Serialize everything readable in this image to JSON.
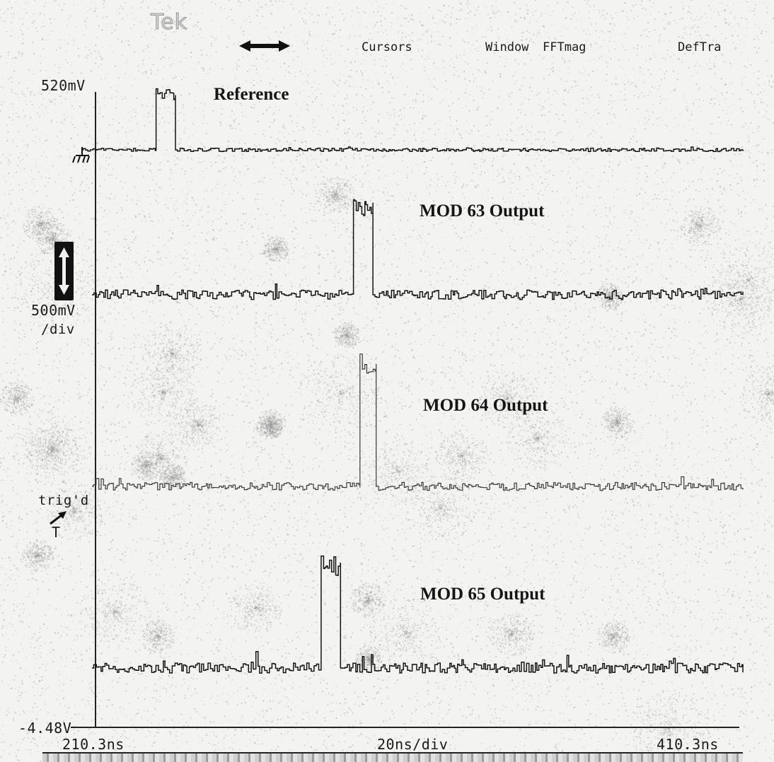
{
  "header": {
    "brand": "Tek",
    "menu": [
      {
        "id": "cursors",
        "label": "Cursors"
      },
      {
        "id": "window",
        "label": "Window"
      },
      {
        "id": "fftmag",
        "label": "FFTmag"
      },
      {
        "id": "deftra",
        "label": "DefTra"
      }
    ]
  },
  "left_readouts": {
    "top_voltage": "520mV",
    "scale_value": "500mV",
    "scale_unit": "/div",
    "trigger_status": "trig'd",
    "trigger_marker": "T",
    "bottom_voltage": "-4.48V"
  },
  "time_axis": {
    "start": "210.3ns",
    "per_div": "20ns/div",
    "end": "410.3ns"
  },
  "icons": {
    "horizontal_arrow": "double-arrow-horizontal-icon",
    "vertical_arrow": "double-arrow-vertical-icon",
    "ground": "ground-symbol-icon",
    "trigger_arrow": "trigger-arrow-icon"
  },
  "colors": {
    "trace": "#141414",
    "trace_faint": "#3a3a3a",
    "background": "#f3f3f1"
  },
  "chart_data": {
    "type": "line",
    "x_start_ns": 210.3,
    "x_end_ns": 410.3,
    "x_per_div_ns": 20,
    "grid": false,
    "series": [
      {
        "name": "Reference",
        "pulse_start_ns": 229,
        "pulse_end_ns": 235,
        "amplitude_div": 1.8,
        "noise_div": 0.05
      },
      {
        "name": "MOD 63 Output",
        "pulse_start_ns": 290,
        "pulse_end_ns": 296,
        "amplitude_div": 2.8,
        "noise_div": 0.14
      },
      {
        "name": "MOD 64 Output",
        "pulse_start_ns": 292,
        "pulse_end_ns": 297,
        "amplitude_div": 3.9,
        "noise_div": 0.12
      },
      {
        "name": "MOD 65 Output",
        "pulse_start_ns": 280,
        "pulse_end_ns": 286,
        "amplitude_div": 3.3,
        "noise_div": 0.15
      }
    ]
  }
}
